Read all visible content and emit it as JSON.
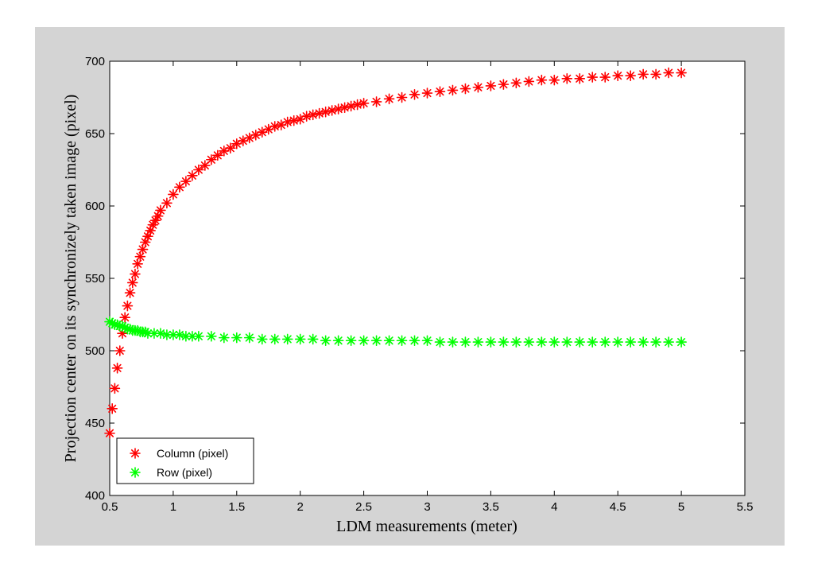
{
  "chart_data": {
    "type": "scatter",
    "xlabel": "LDM measurements (meter)",
    "ylabel": "Projection center on its synchronizely taken image (pixel)",
    "xlim": [
      0.5,
      5.5
    ],
    "ylim": [
      400,
      700
    ],
    "xticks": [
      "0.5",
      "1",
      "1.5",
      "2",
      "2.5",
      "3",
      "3.5",
      "4",
      "4.5",
      "5",
      "5.5"
    ],
    "yticks": [
      "400",
      "450",
      "500",
      "550",
      "600",
      "650",
      "700"
    ],
    "grid": false,
    "legend_position": "bottom-left",
    "marker": "asterisk",
    "series": [
      {
        "name": "Column (pixel)",
        "color": "#ff0000",
        "points": [
          [
            0.5,
            443
          ],
          [
            0.52,
            460
          ],
          [
            0.54,
            474
          ],
          [
            0.56,
            488
          ],
          [
            0.58,
            500
          ],
          [
            0.6,
            512
          ],
          [
            0.62,
            523
          ],
          [
            0.64,
            531
          ],
          [
            0.66,
            540
          ],
          [
            0.68,
            547
          ],
          [
            0.7,
            553
          ],
          [
            0.72,
            560
          ],
          [
            0.74,
            565
          ],
          [
            0.76,
            570
          ],
          [
            0.78,
            575
          ],
          [
            0.8,
            579
          ],
          [
            0.82,
            583
          ],
          [
            0.84,
            587
          ],
          [
            0.86,
            590
          ],
          [
            0.88,
            593
          ],
          [
            0.9,
            597
          ],
          [
            0.95,
            602
          ],
          [
            1.0,
            608
          ],
          [
            1.05,
            613
          ],
          [
            1.1,
            617
          ],
          [
            1.15,
            621
          ],
          [
            1.2,
            625
          ],
          [
            1.25,
            628
          ],
          [
            1.3,
            632
          ],
          [
            1.35,
            635
          ],
          [
            1.4,
            638
          ],
          [
            1.45,
            640
          ],
          [
            1.5,
            643
          ],
          [
            1.55,
            645
          ],
          [
            1.6,
            647
          ],
          [
            1.65,
            649
          ],
          [
            1.7,
            651
          ],
          [
            1.75,
            653
          ],
          [
            1.8,
            655
          ],
          [
            1.85,
            656
          ],
          [
            1.9,
            658
          ],
          [
            1.95,
            659
          ],
          [
            2.0,
            660
          ],
          [
            2.05,
            662
          ],
          [
            2.1,
            663
          ],
          [
            2.15,
            664
          ],
          [
            2.2,
            665
          ],
          [
            2.25,
            666
          ],
          [
            2.3,
            667
          ],
          [
            2.35,
            668
          ],
          [
            2.4,
            669
          ],
          [
            2.45,
            670
          ],
          [
            2.5,
            671
          ],
          [
            2.6,
            672
          ],
          [
            2.7,
            674
          ],
          [
            2.8,
            675
          ],
          [
            2.9,
            677
          ],
          [
            3.0,
            678
          ],
          [
            3.1,
            679
          ],
          [
            3.2,
            680
          ],
          [
            3.3,
            681
          ],
          [
            3.4,
            682
          ],
          [
            3.5,
            683
          ],
          [
            3.6,
            684
          ],
          [
            3.7,
            685
          ],
          [
            3.8,
            686
          ],
          [
            3.9,
            687
          ],
          [
            4.0,
            687
          ],
          [
            4.1,
            688
          ],
          [
            4.2,
            688
          ],
          [
            4.3,
            689
          ],
          [
            4.4,
            689
          ],
          [
            4.5,
            690
          ],
          [
            4.6,
            690
          ],
          [
            4.7,
            691
          ],
          [
            4.8,
            691
          ],
          [
            4.9,
            692
          ],
          [
            5.0,
            692
          ]
        ]
      },
      {
        "name": "Row (pixel)",
        "color": "#00ff00",
        "points": [
          [
            0.5,
            520
          ],
          [
            0.52,
            519
          ],
          [
            0.54,
            518
          ],
          [
            0.56,
            518
          ],
          [
            0.58,
            517
          ],
          [
            0.6,
            517
          ],
          [
            0.62,
            516
          ],
          [
            0.64,
            515
          ],
          [
            0.66,
            515
          ],
          [
            0.68,
            514
          ],
          [
            0.7,
            514
          ],
          [
            0.72,
            514
          ],
          [
            0.74,
            513
          ],
          [
            0.76,
            513
          ],
          [
            0.78,
            513
          ],
          [
            0.8,
            512
          ],
          [
            0.85,
            512
          ],
          [
            0.9,
            512
          ],
          [
            0.95,
            511
          ],
          [
            1.0,
            511
          ],
          [
            1.05,
            511
          ],
          [
            1.1,
            510
          ],
          [
            1.15,
            510
          ],
          [
            1.2,
            510
          ],
          [
            1.3,
            510
          ],
          [
            1.4,
            509
          ],
          [
            1.5,
            509
          ],
          [
            1.6,
            509
          ],
          [
            1.7,
            508
          ],
          [
            1.8,
            508
          ],
          [
            1.9,
            508
          ],
          [
            2.0,
            508
          ],
          [
            2.1,
            508
          ],
          [
            2.2,
            507
          ],
          [
            2.3,
            507
          ],
          [
            2.4,
            507
          ],
          [
            2.5,
            507
          ],
          [
            2.6,
            507
          ],
          [
            2.7,
            507
          ],
          [
            2.8,
            507
          ],
          [
            2.9,
            507
          ],
          [
            3.0,
            507
          ],
          [
            3.1,
            506
          ],
          [
            3.2,
            506
          ],
          [
            3.3,
            506
          ],
          [
            3.4,
            506
          ],
          [
            3.5,
            506
          ],
          [
            3.6,
            506
          ],
          [
            3.7,
            506
          ],
          [
            3.8,
            506
          ],
          [
            3.9,
            506
          ],
          [
            4.0,
            506
          ],
          [
            4.1,
            506
          ],
          [
            4.2,
            506
          ],
          [
            4.3,
            506
          ],
          [
            4.4,
            506
          ],
          [
            4.5,
            506
          ],
          [
            4.6,
            506
          ],
          [
            4.7,
            506
          ],
          [
            4.8,
            506
          ],
          [
            4.9,
            506
          ],
          [
            5.0,
            506
          ]
        ]
      }
    ]
  },
  "colors": {
    "figure_background": "#d4d4d4",
    "plot_background": "#ffffff",
    "axis": "#000000"
  }
}
